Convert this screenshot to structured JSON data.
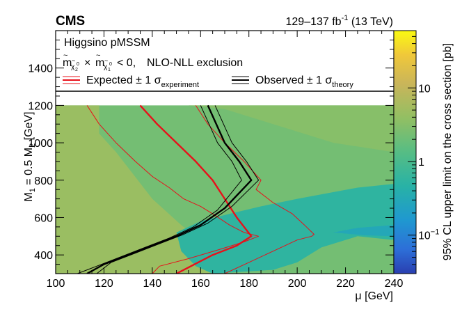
{
  "header": {
    "experiment": "CMS",
    "luminosity": "129–137 fb",
    "lumi_sup": "-1",
    "energy": "(13 TeV)"
  },
  "legend": {
    "model": "Higgsino pMSSM",
    "exclusion": "NLO-NLL exclusion",
    "condition_tail": "< 0,",
    "expected_label": "Expected ± 1 σ",
    "expected_sub": "experiment",
    "observed_label": "Observed ± 1 σ",
    "observed_sub": "theory"
  },
  "colors": {
    "expected": "#e8101a",
    "observed": "#000000",
    "frame": "#000000"
  },
  "chart_data": {
    "type": "heatmap",
    "title": "",
    "xlabel": "μ [GeV]",
    "ylabel": "M₁ = 0.5 M₂ [GeV]",
    "zlabel": "95% CL upper limit on the cross section [pb]",
    "xlim": [
      100,
      240
    ],
    "ylim": [
      300,
      1600
    ],
    "zlim": [
      0.03,
      60
    ],
    "zscale": "log",
    "x_ticks": [
      100,
      120,
      140,
      160,
      180,
      200,
      220,
      240
    ],
    "y_ticks": [
      400,
      600,
      800,
      1000,
      1200,
      1400
    ],
    "z_ticks": [
      {
        "value": 10,
        "label": "10"
      },
      {
        "value": 1,
        "label": "1"
      },
      {
        "value": 0.1,
        "label": "10",
        "exp": "−1"
      }
    ],
    "heatmap_regions": [
      {
        "name": "low-mu-high-limit",
        "value": 4.5,
        "polygon": [
          [
            100,
            300
          ],
          [
            100,
            1200
          ],
          [
            118,
            1200
          ],
          [
            118,
            1050
          ],
          [
            125,
            950
          ],
          [
            140,
            700
          ],
          [
            152,
            560
          ],
          [
            160,
            480
          ],
          [
            168,
            300
          ]
        ]
      },
      {
        "name": "mid-band",
        "value": 2.3,
        "polygon": [
          [
            100,
            1200
          ],
          [
            240,
            1200
          ],
          [
            240,
            300
          ],
          [
            100,
            300
          ]
        ]
      },
      {
        "name": "upper-right-wedge",
        "value": 3.2,
        "polygon": [
          [
            155,
            1200
          ],
          [
            240,
            1200
          ],
          [
            240,
            950
          ],
          [
            215,
            1000
          ],
          [
            190,
            1100
          ],
          [
            170,
            1180
          ]
        ]
      },
      {
        "name": "low-limit-valley",
        "value": 0.55,
        "polygon": [
          [
            150,
            520
          ],
          [
            160,
            580
          ],
          [
            172,
            620
          ],
          [
            185,
            660
          ],
          [
            200,
            700
          ],
          [
            225,
            760
          ],
          [
            240,
            780
          ],
          [
            240,
            480
          ],
          [
            225,
            500
          ],
          [
            210,
            440
          ],
          [
            200,
            360
          ],
          [
            190,
            320
          ],
          [
            165,
            300
          ],
          [
            158,
            340
          ],
          [
            152,
            420
          ]
        ]
      },
      {
        "name": "deep-valley-core",
        "value": 0.3,
        "polygon": [
          [
            215,
            520
          ],
          [
            225,
            545
          ],
          [
            240,
            560
          ],
          [
            240,
            500
          ],
          [
            228,
            505
          ]
        ]
      }
    ],
    "series": [
      {
        "name": "Expected",
        "role": "central",
        "style": "red-thick",
        "x": [
          135,
          142,
          150,
          158,
          165,
          170,
          175,
          181,
          175,
          165,
          150
        ],
        "y": [
          1200,
          1100,
          1000,
          900,
          800,
          700,
          600,
          500,
          450,
          400,
          300
        ]
      },
      {
        "name": "Expected -1σ experiment",
        "role": "band",
        "style": "red-thin",
        "x": [
          113,
          118,
          125,
          133,
          140,
          147,
          153,
          160,
          165,
          172,
          178,
          184,
          178,
          168,
          155,
          143,
          140
        ],
        "y": [
          1200,
          1100,
          1000,
          900,
          820,
          760,
          700,
          660,
          620,
          560,
          520,
          500,
          470,
          430,
          380,
          340,
          300
        ]
      },
      {
        "name": "Expected +1σ experiment",
        "role": "band",
        "style": "red-thin",
        "x": [
          158,
          163,
          170,
          178,
          185,
          183,
          190,
          198,
          203,
          207,
          206,
          200,
          190,
          180,
          170
        ],
        "y": [
          1200,
          1100,
          1000,
          900,
          800,
          750,
          680,
          620,
          560,
          510,
          500,
          480,
          420,
          360,
          300
        ]
      },
      {
        "name": "Observed",
        "role": "central",
        "style": "black-thick",
        "x": [
          163,
          170,
          176,
          181,
          170,
          160,
          150,
          140,
          130,
          120,
          113
        ],
        "y": [
          1200,
          1000,
          900,
          800,
          650,
          560,
          500,
          450,
          400,
          350,
          300
        ]
      },
      {
        "name": "Observed -1σ theory",
        "role": "band",
        "style": "black-thin",
        "x": [
          160,
          167,
          173,
          177,
          167,
          157,
          147,
          137,
          127,
          117,
          109
        ],
        "y": [
          1200,
          1000,
          900,
          800,
          640,
          550,
          490,
          440,
          390,
          340,
          300
        ]
      },
      {
        "name": "Observed +1σ theory",
        "role": "band",
        "style": "black-thin",
        "x": [
          166,
          173,
          179,
          184,
          173,
          163,
          153,
          143,
          133,
          123,
          117
        ],
        "y": [
          1200,
          1000,
          900,
          800,
          660,
          570,
          510,
          460,
          410,
          360,
          300
        ]
      }
    ]
  }
}
